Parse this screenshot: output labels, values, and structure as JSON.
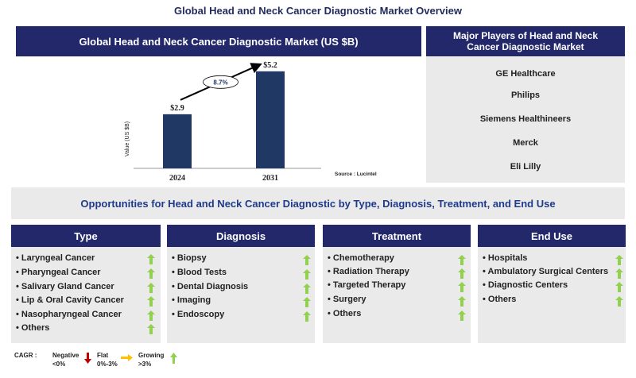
{
  "page_title": "Global Head and Neck Cancer Diagnostic Market Overview",
  "chart_panel": {
    "header": "Global Head and Neck Cancer Diagnostic Market (US $B)",
    "source": "Source : Lucintel"
  },
  "chart_data": {
    "type": "bar",
    "title": "Global Head and Neck Cancer Diagnostic Market (US $B)",
    "categories": [
      "2024",
      "2031"
    ],
    "values": [
      2.9,
      5.2
    ],
    "value_labels": [
      "$2.9",
      "$5.2"
    ],
    "ylabel": "Value (US $B)",
    "xlabel": "",
    "ylim": [
      0,
      6
    ],
    "cagr_label": "8.7%",
    "bar_color": "#1f3864",
    "grid": false
  },
  "players": {
    "header": "Major Players of Head and Neck Cancer Diagnostic Market",
    "items": [
      "GE Healthcare",
      "Philips",
      "Siemens Healthineers",
      "Merck",
      "Eli Lilly"
    ]
  },
  "opportunities": {
    "title": "Opportunities for Head and Neck Cancer Diagnostic by Type, Diagnosis, Treatment, and End Use",
    "columns": [
      {
        "header": "Type",
        "items": [
          "• Laryngeal Cancer",
          "• Pharyngeal Cancer",
          "• Salivary Gland Cancer",
          "• Lip & Oral Cavity Cancer",
          "• Nasopharyngeal Cancer",
          "• Others"
        ]
      },
      {
        "header": "Diagnosis",
        "items": [
          "• Biopsy",
          "• Blood Tests",
          "• Dental Diagnosis",
          "• Imaging",
          "• Endoscopy"
        ]
      },
      {
        "header": "Treatment",
        "items": [
          "• Chemotherapy",
          "• Radiation Therapy",
          "• Targeted Therapy",
          "• Surgery",
          "• Others"
        ]
      },
      {
        "header": "End Use",
        "items": [
          "• Hospitals",
          "• Ambulatory Surgical Centers",
          "• Diagnostic Centers",
          "• Others"
        ]
      }
    ]
  },
  "legend": {
    "cagr_label": "CAGR :",
    "negative_label": "Negative",
    "negative_range": "<0%",
    "flat_label": "Flat",
    "flat_range": "0%-3%",
    "growing_label": "Growing",
    "growing_range": ">3%"
  },
  "colors": {
    "header_navy": "#23286b",
    "growing_green": "#92d050",
    "negative_red": "#c00000",
    "flat_yellow": "#ffc000"
  }
}
